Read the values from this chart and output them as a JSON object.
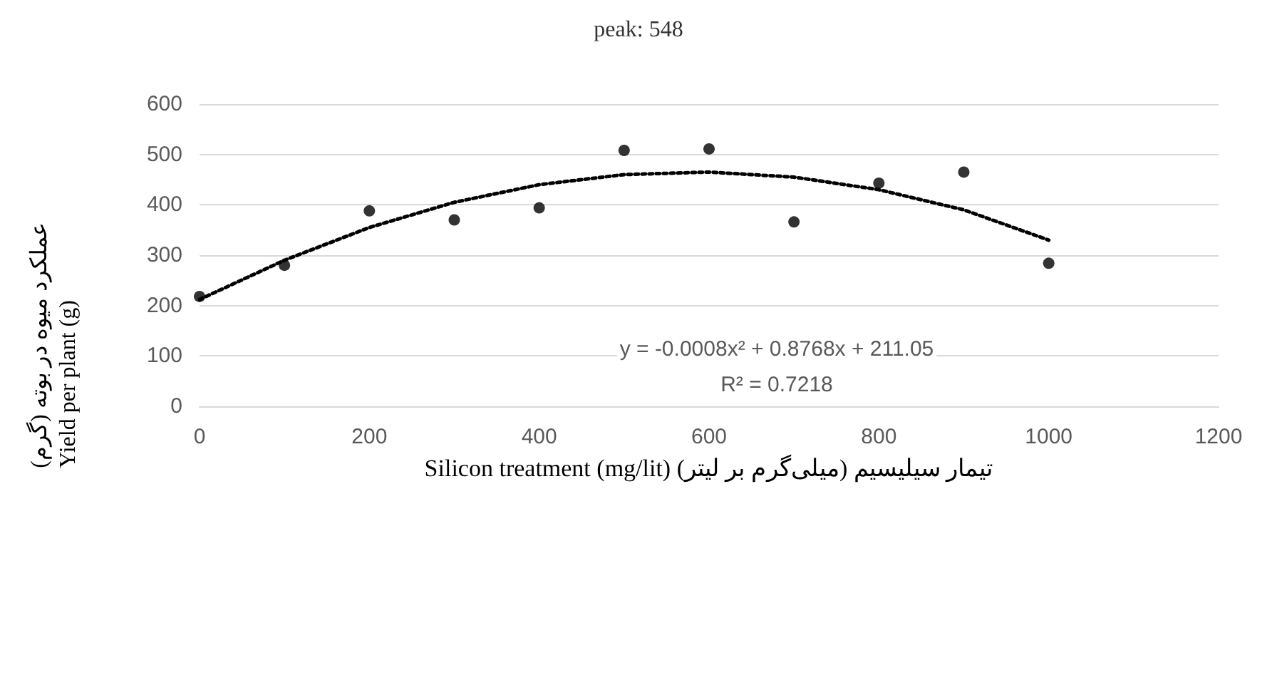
{
  "chart_data": {
    "type": "scatter",
    "title": "peak: 548",
    "xlabel": "Silicon treatment (mg/lit) تیمار سیلیسیم (میلی‌گرم بر لیتر)",
    "ylabel": "عملکرد میوه در بوته (گرم)\nYield per plant (g)",
    "annotations": [
      "y = -0.0008x² + 0.8768x + 211.05",
      "R² = 0.7218"
    ],
    "x": [
      0,
      100,
      200,
      300,
      400,
      500,
      600,
      700,
      800,
      900,
      1000
    ],
    "series": [
      {
        "color": "#000000",
        "marker": "circle",
        "values": [
          218,
          280,
          388,
          370,
          394,
          508,
          511,
          366,
          443,
          465,
          284
        ]
      },
      {
        "type": "line",
        "color": "#000000",
        "marker": "none",
        "line_style": "dotted",
        "x": [
          0,
          100,
          200,
          300,
          400,
          500,
          600,
          700,
          800,
          900,
          1000
        ],
        "values": [
          212,
          290,
          355,
          405,
          440,
          460,
          465,
          455,
          430,
          390,
          330
        ]
      }
    ],
    "xlim": [
      0,
      1200
    ],
    "xticks": [
      0,
      200,
      400,
      600,
      800,
      1000,
      1200
    ],
    "ylim": [
      0,
      600
    ],
    "yticks": [
      0,
      100,
      200,
      300,
      400,
      500,
      600
    ],
    "grid": "y"
  }
}
